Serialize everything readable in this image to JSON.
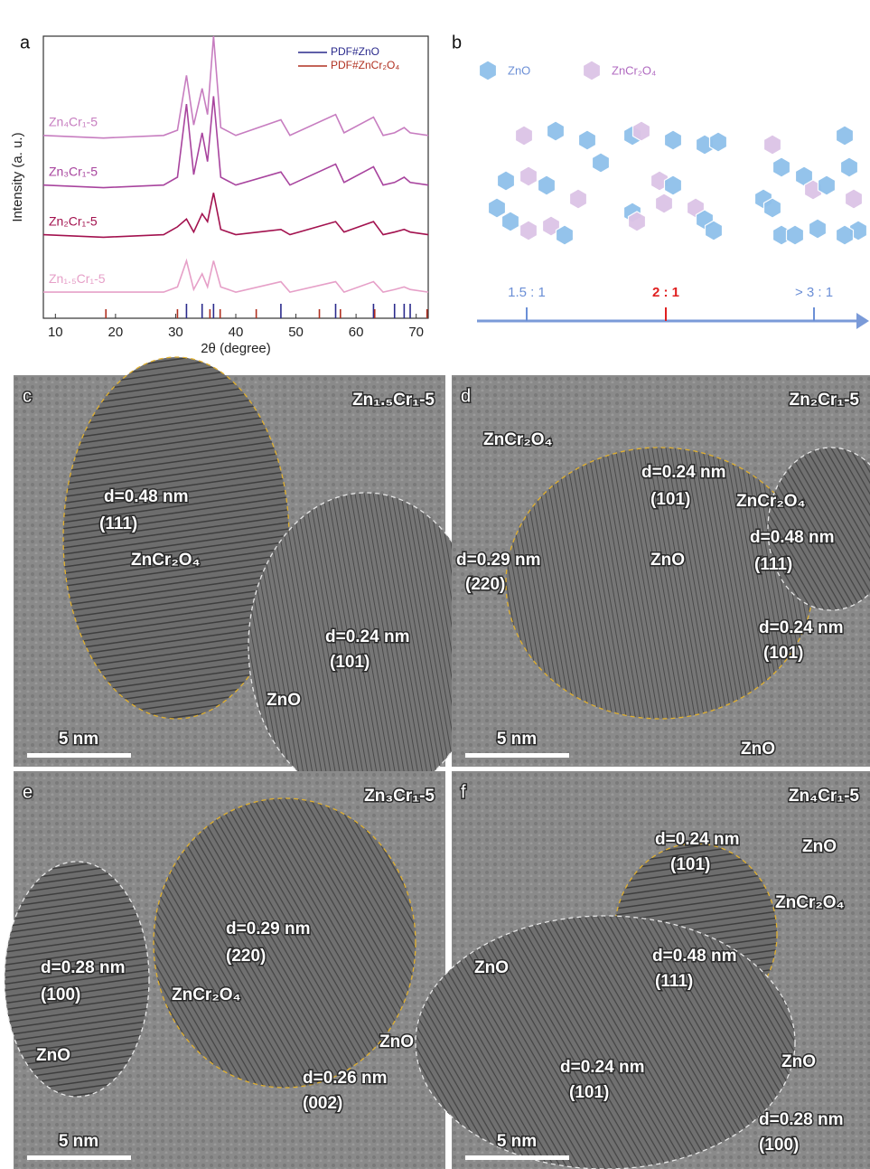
{
  "chart_data": {
    "type": "line",
    "panel_label": "a",
    "xlabel": "2θ (degree)",
    "ylabel": "Intensity (a. u.)",
    "xlim": [
      8,
      72
    ],
    "xticks": [
      10,
      20,
      30,
      40,
      50,
      60,
      70
    ],
    "ylim": [
      -8,
      100
    ],
    "x": [
      8,
      18,
      28,
      30.3,
      31.8,
      33,
      34.4,
      35.3,
      36.3,
      37.5,
      40,
      47.5,
      49,
      56.6,
      58,
      62.9,
      64.5,
      66.4,
      68,
      69,
      72
    ],
    "series": [
      {
        "name": "Zn₄Cr₁-5",
        "color": "#c77dc0",
        "values": [
          62,
          61,
          62,
          64,
          85,
          66,
          80,
          70,
          100,
          65,
          62,
          68,
          62,
          70,
          63,
          69,
          62,
          63,
          65,
          63,
          62
        ]
      },
      {
        "name": "Zn₃Cr₁-5",
        "color": "#a8449e",
        "values": [
          43,
          42,
          43,
          46,
          74,
          47,
          63,
          52,
          77,
          46,
          43,
          48,
          43,
          51,
          44,
          50,
          43,
          44,
          46,
          44,
          43
        ]
      },
      {
        "name": "Zn₂Cr₁-5",
        "color": "#a3124f",
        "values": [
          24,
          23,
          24,
          27,
          30,
          25,
          32,
          29,
          40,
          26,
          24,
          26,
          24,
          29,
          25,
          29,
          24,
          25,
          26,
          25,
          24
        ]
      },
      {
        "name": "Zn₁.₅Cr₁-5",
        "color": "#e6a0c8",
        "values": [
          2,
          2,
          2,
          4,
          14,
          3,
          9,
          4,
          14,
          4,
          2,
          6,
          2,
          6,
          2,
          6,
          2,
          3,
          4,
          3,
          2
        ]
      }
    ],
    "reference": [
      {
        "name": "PDF#ZnO",
        "color": "#2a2a8c",
        "positions": [
          31.8,
          34.4,
          36.3,
          47.5,
          56.6,
          62.9,
          66.4,
          68,
          69
        ]
      },
      {
        "name": "PDF#ZnCr₂O₄",
        "color": "#b03020",
        "positions": [
          18.4,
          30.3,
          35.7,
          37.4,
          43.4,
          53.9,
          57.4,
          63.1,
          71.8
        ]
      }
    ]
  },
  "schematic": {
    "panel_label": "b",
    "legend": [
      {
        "label": "ZnO",
        "color": "#8fc0ea"
      },
      {
        "label": "ZnCr₂O₄",
        "color": "#dcc3e6"
      }
    ],
    "ratios": [
      "1.5 : 1",
      "2 : 1",
      "> 3 : 1"
    ],
    "ratio_colors": [
      "#6b8fd6",
      "#e02020",
      "#6b8fd6"
    ]
  },
  "micrographs": [
    {
      "panel_label": "c",
      "sample": "Zn₁.₅Cr₁-5",
      "scale_bar": "5 nm",
      "annotations": [
        "d=0.48 nm",
        "(111)",
        "ZnCr₂O₄",
        "d=0.24 nm",
        "(101)",
        "ZnO"
      ]
    },
    {
      "panel_label": "d",
      "sample": "Zn₂Cr₁-5",
      "scale_bar": "5 nm",
      "annotations": [
        "ZnCr₂O₄",
        "d=0.24 nm",
        "(101)",
        "ZnCr₂O₄",
        "d=0.29 nm",
        "(220)",
        "ZnO",
        "d=0.48 nm",
        "(111)",
        "d=0.24 nm",
        "(101)",
        "ZnO"
      ]
    },
    {
      "panel_label": "e",
      "sample": "Zn₃Cr₁-5",
      "scale_bar": "5 nm",
      "annotations": [
        "d=0.29 nm",
        "(220)",
        "d=0.28 nm",
        "(100)",
        "ZnCr₂O₄",
        "ZnO",
        "ZnO",
        "d=0.26 nm",
        "(002)"
      ]
    },
    {
      "panel_label": "f",
      "sample": "Zn₄Cr₁-5",
      "scale_bar": "5 nm",
      "annotations": [
        "d=0.24 nm",
        "(101)",
        "ZnO",
        "ZnCr₂O₄",
        "ZnO",
        "d=0.48 nm",
        "(111)",
        "d=0.24 nm",
        "(101)",
        "ZnO",
        "d=0.28 nm",
        "(100)"
      ]
    }
  ]
}
